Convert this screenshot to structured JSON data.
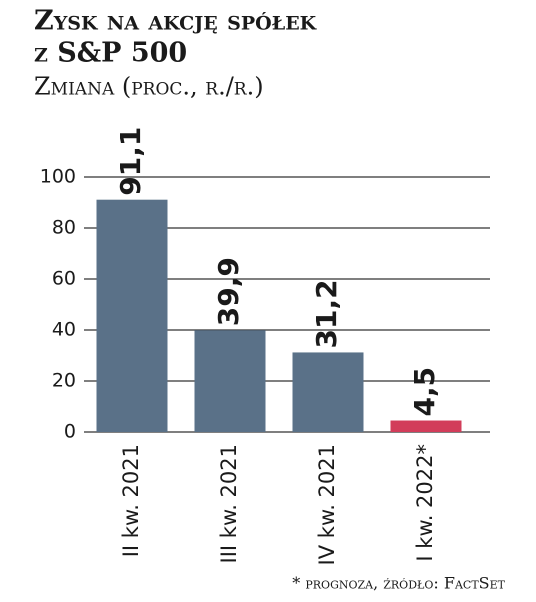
{
  "chart_data": {
    "type": "bar",
    "title": [
      "Zysk na akcję spółek",
      "z S&P 500"
    ],
    "subtitle": "Zmiana (proc., r./r.)",
    "categories": [
      "II kw. 2021",
      "III kw. 2021",
      "IV kw. 2021",
      "I kw. 2022*"
    ],
    "values": [
      91.1,
      39.9,
      31.2,
      4.5
    ],
    "value_labels": [
      "91,1",
      "39,9",
      "31,2",
      "4,5"
    ],
    "colors": [
      "#5a7188",
      "#5a7188",
      "#5a7188",
      "#d23d5a"
    ],
    "ylim": [
      0,
      100
    ],
    "yticks": [
      0,
      20,
      40,
      60,
      80,
      100
    ],
    "grid": true,
    "footnote": "* prognoza, źródło: FactSet"
  }
}
